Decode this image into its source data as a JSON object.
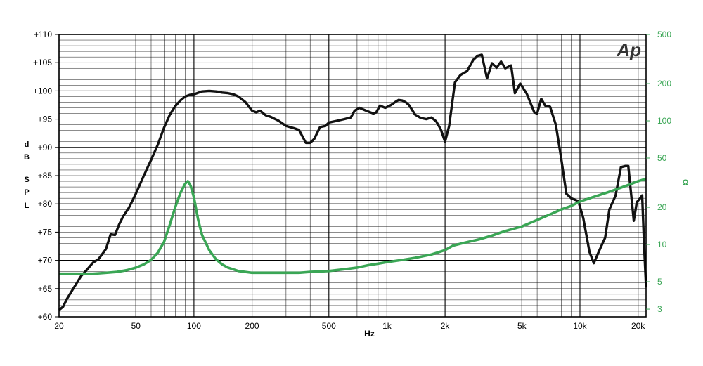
{
  "chart_data": {
    "type": "line",
    "x_axis": {
      "label": "Hz",
      "scale": "log",
      "range": [
        20,
        22000
      ],
      "ticks": [
        {
          "value": 20,
          "label": "20"
        },
        {
          "value": 50,
          "label": "50"
        },
        {
          "value": 100,
          "label": "100"
        },
        {
          "value": 200,
          "label": "200"
        },
        {
          "value": 500,
          "label": "500"
        },
        {
          "value": 1000,
          "label": "1k"
        },
        {
          "value": 2000,
          "label": "2k"
        },
        {
          "value": 5000,
          "label": "5k"
        },
        {
          "value": 10000,
          "label": "10k"
        },
        {
          "value": 20000,
          "label": "20k"
        }
      ]
    },
    "y_left": {
      "label_letters": [
        "d",
        "B",
        "S",
        "P",
        "L"
      ],
      "range": [
        60,
        110
      ],
      "ticks": [
        {
          "value": 60,
          "label": "+60"
        },
        {
          "value": 65,
          "label": "+65"
        },
        {
          "value": 70,
          "label": "+70"
        },
        {
          "value": 75,
          "label": "+75"
        },
        {
          "value": 80,
          "label": "+80"
        },
        {
          "value": 85,
          "label": "+85"
        },
        {
          "value": 90,
          "label": "+90"
        },
        {
          "value": 95,
          "label": "+95"
        },
        {
          "value": 100,
          "label": "+100"
        },
        {
          "value": 105,
          "label": "+105"
        },
        {
          "value": 110,
          "label": "+110"
        }
      ]
    },
    "y_right": {
      "label": "Ω",
      "scale": "log",
      "range": [
        2.6,
        500
      ],
      "ticks": [
        {
          "value": 3,
          "label": "3"
        },
        {
          "value": 5,
          "label": "5"
        },
        {
          "value": 10,
          "label": "10"
        },
        {
          "value": 20,
          "label": "20"
        },
        {
          "value": 50,
          "label": "50"
        },
        {
          "value": 100,
          "label": "100"
        },
        {
          "value": 200,
          "label": "200"
        },
        {
          "value": 500,
          "label": "500"
        }
      ]
    },
    "grid": true,
    "logo_text": "Ap",
    "colors": {
      "spl": "#111111",
      "impedance": "#3aa655",
      "right_axis": "#3aa655",
      "grid": "#000000"
    },
    "series": [
      {
        "axis": "left",
        "color": "#111111",
        "points": [
          [
            20,
            61.2
          ],
          [
            21,
            61.8
          ],
          [
            22,
            63.2
          ],
          [
            24,
            65.3
          ],
          [
            26,
            67.2
          ],
          [
            28,
            68.4
          ],
          [
            30,
            69.6
          ],
          [
            32,
            70.2
          ],
          [
            35,
            72.0
          ],
          [
            37,
            74.6
          ],
          [
            39,
            74.5
          ],
          [
            41,
            76.4
          ],
          [
            43,
            77.8
          ],
          [
            46,
            79.3
          ],
          [
            50,
            81.8
          ],
          [
            55,
            85.0
          ],
          [
            60,
            87.8
          ],
          [
            65,
            90.5
          ],
          [
            70,
            93.5
          ],
          [
            75,
            95.8
          ],
          [
            80,
            97.3
          ],
          [
            85,
            98.3
          ],
          [
            90,
            99.0
          ],
          [
            95,
            99.3
          ],
          [
            100,
            99.4
          ],
          [
            110,
            99.9
          ],
          [
            120,
            100.0
          ],
          [
            130,
            99.9
          ],
          [
            140,
            99.7
          ],
          [
            150,
            99.6
          ],
          [
            160,
            99.4
          ],
          [
            170,
            99.0
          ],
          [
            185,
            98.0
          ],
          [
            200,
            96.5
          ],
          [
            210,
            96.2
          ],
          [
            220,
            96.5
          ],
          [
            235,
            95.7
          ],
          [
            250,
            95.4
          ],
          [
            275,
            94.7
          ],
          [
            300,
            93.8
          ],
          [
            330,
            93.4
          ],
          [
            350,
            93.1
          ],
          [
            380,
            90.8
          ],
          [
            400,
            90.8
          ],
          [
            420,
            91.5
          ],
          [
            450,
            93.6
          ],
          [
            480,
            93.8
          ],
          [
            500,
            94.4
          ],
          [
            550,
            94.7
          ],
          [
            600,
            95.0
          ],
          [
            650,
            95.3
          ],
          [
            680,
            96.5
          ],
          [
            720,
            97.0
          ],
          [
            780,
            96.5
          ],
          [
            850,
            96.0
          ],
          [
            880,
            96.2
          ],
          [
            920,
            97.4
          ],
          [
            980,
            97.0
          ],
          [
            1050,
            97.5
          ],
          [
            1100,
            98.0
          ],
          [
            1150,
            98.4
          ],
          [
            1200,
            98.3
          ],
          [
            1250,
            98.0
          ],
          [
            1300,
            97.5
          ],
          [
            1400,
            95.8
          ],
          [
            1500,
            95.2
          ],
          [
            1600,
            95.0
          ],
          [
            1700,
            95.3
          ],
          [
            1800,
            94.6
          ],
          [
            1900,
            93.2
          ],
          [
            2000,
            91.0
          ],
          [
            2100,
            93.8
          ],
          [
            2250,
            101.5
          ],
          [
            2400,
            102.8
          ],
          [
            2600,
            103.5
          ],
          [
            2800,
            105.5
          ],
          [
            2950,
            106.2
          ],
          [
            3100,
            106.4
          ],
          [
            3300,
            102.2
          ],
          [
            3500,
            104.9
          ],
          [
            3700,
            104.1
          ],
          [
            3900,
            105.2
          ],
          [
            4100,
            104.0
          ],
          [
            4400,
            104.5
          ],
          [
            4600,
            99.6
          ],
          [
            4900,
            101.3
          ],
          [
            5300,
            99.5
          ],
          [
            5800,
            96.2
          ],
          [
            6000,
            96.0
          ],
          [
            6300,
            98.6
          ],
          [
            6600,
            97.4
          ],
          [
            7000,
            97.2
          ],
          [
            7500,
            94.0
          ],
          [
            8000,
            88.0
          ],
          [
            8500,
            81.8
          ],
          [
            9000,
            81.0
          ],
          [
            9800,
            80.5
          ],
          [
            10400,
            77.5
          ],
          [
            11200,
            71.5
          ],
          [
            11800,
            69.5
          ],
          [
            12500,
            71.5
          ],
          [
            13500,
            74.0
          ],
          [
            14200,
            79.0
          ],
          [
            15300,
            81.5
          ],
          [
            16300,
            86.5
          ],
          [
            17200,
            86.7
          ],
          [
            17800,
            86.7
          ],
          [
            18500,
            81.0
          ],
          [
            19000,
            77.0
          ],
          [
            19700,
            80.3
          ],
          [
            20500,
            81.0
          ],
          [
            21000,
            81.5
          ],
          [
            21500,
            72.5
          ],
          [
            22000,
            65.2
          ]
        ]
      },
      {
        "axis": "right",
        "color": "#3aa655",
        "points": [
          [
            20,
            5.8
          ],
          [
            25,
            5.8
          ],
          [
            30,
            5.8
          ],
          [
            35,
            5.9
          ],
          [
            40,
            6.0
          ],
          [
            45,
            6.2
          ],
          [
            50,
            6.5
          ],
          [
            55,
            6.9
          ],
          [
            60,
            7.5
          ],
          [
            65,
            8.6
          ],
          [
            70,
            10.5
          ],
          [
            75,
            14.5
          ],
          [
            80,
            20.0
          ],
          [
            85,
            26.0
          ],
          [
            90,
            31.0
          ],
          [
            93,
            32.5
          ],
          [
            96,
            30.0
          ],
          [
            100,
            24.0
          ],
          [
            105,
            16.0
          ],
          [
            110,
            12.0
          ],
          [
            120,
            9.0
          ],
          [
            130,
            7.6
          ],
          [
            140,
            6.9
          ],
          [
            150,
            6.5
          ],
          [
            170,
            6.1
          ],
          [
            200,
            5.9
          ],
          [
            250,
            5.9
          ],
          [
            300,
            5.9
          ],
          [
            350,
            5.9
          ],
          [
            400,
            6.0
          ],
          [
            500,
            6.1
          ],
          [
            600,
            6.3
          ],
          [
            700,
            6.5
          ],
          [
            800,
            6.8
          ],
          [
            900,
            7.0
          ],
          [
            1000,
            7.2
          ],
          [
            1200,
            7.5
          ],
          [
            1400,
            7.8
          ],
          [
            1700,
            8.3
          ],
          [
            2000,
            9.0
          ],
          [
            2200,
            9.8
          ],
          [
            2500,
            10.3
          ],
          [
            3000,
            11.0
          ],
          [
            3500,
            11.8
          ],
          [
            4000,
            12.7
          ],
          [
            5000,
            14.0
          ],
          [
            6000,
            15.8
          ],
          [
            7000,
            17.5
          ],
          [
            8000,
            19.2
          ],
          [
            9000,
            20.5
          ],
          [
            10000,
            22.3
          ],
          [
            12000,
            24.5
          ],
          [
            14000,
            26.5
          ],
          [
            16000,
            28.5
          ],
          [
            18000,
            30.5
          ],
          [
            20000,
            32.5
          ],
          [
            22000,
            34.0
          ]
        ]
      }
    ]
  }
}
